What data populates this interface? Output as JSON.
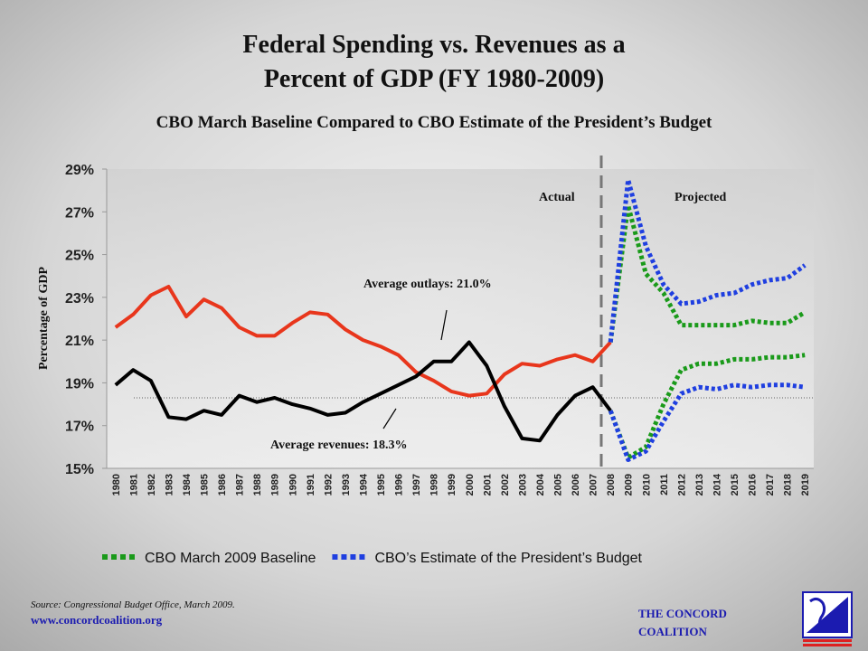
{
  "chart_data": {
    "type": "line",
    "title": [
      "Federal Spending vs. Revenues as a",
      "Percent of GDP (FY 1980-2009)"
    ],
    "subtitle": "CBO March Baseline Compared to CBO Estimate of the President’s Budget",
    "y_label": "Percentage of GDP",
    "categories": [
      "1980",
      "1981",
      "1982",
      "1983",
      "1984",
      "1985",
      "1986",
      "1987",
      "1988",
      "1989",
      "1990",
      "1991",
      "1992",
      "1993",
      "1994",
      "1995",
      "1996",
      "1997",
      "1998",
      "1999",
      "2000",
      "2001",
      "2002",
      "2003",
      "2004",
      "2005",
      "2006",
      "2007",
      "2008",
      "2009",
      "2010",
      "2011",
      "2012",
      "2013",
      "2014",
      "2015",
      "2016",
      "2017",
      "2018",
      "2019"
    ],
    "ylim": [
      15,
      29
    ],
    "yticks": [
      {
        "value": 15,
        "label": "15%"
      },
      {
        "value": 17,
        "label": "17%"
      },
      {
        "value": 19,
        "label": "19%"
      },
      {
        "value": 21,
        "label": "21%"
      },
      {
        "value": 23,
        "label": "23%"
      },
      {
        "value": 25,
        "label": "25%"
      },
      {
        "value": 27,
        "label": "27%"
      },
      {
        "value": 29,
        "label": "29%"
      }
    ],
    "series": [
      {
        "color": "#e8361c",
        "dotted": false,
        "values": [
          21.6,
          22.2,
          23.1,
          23.5,
          22.1,
          22.9,
          22.5,
          21.6,
          21.2,
          21.2,
          21.8,
          22.3,
          22.2,
          21.5,
          21.0,
          20.7,
          20.3,
          19.5,
          19.1,
          18.6,
          18.4,
          18.5,
          19.4,
          19.9,
          19.8,
          20.1,
          20.3,
          20.0,
          20.9,
          null,
          null,
          null,
          null,
          null,
          null,
          null,
          null,
          null,
          null,
          null
        ]
      },
      {
        "color": "#000000",
        "dotted": false,
        "values": [
          18.9,
          19.6,
          19.1,
          17.4,
          17.3,
          17.7,
          17.5,
          18.4,
          18.1,
          18.3,
          18.0,
          17.8,
          17.5,
          17.6,
          18.1,
          18.5,
          18.9,
          19.3,
          20.0,
          20.0,
          20.9,
          19.8,
          17.9,
          16.4,
          16.3,
          17.5,
          18.4,
          18.8,
          17.7,
          null,
          null,
          null,
          null,
          null,
          null,
          null,
          null,
          null,
          null,
          null
        ]
      },
      {
        "name": "CBO March 2009 Baseline",
        "color": "#1a9a1a",
        "dotted": true,
        "values": [
          null,
          null,
          null,
          null,
          null,
          null,
          null,
          null,
          null,
          null,
          null,
          null,
          null,
          null,
          null,
          null,
          null,
          null,
          null,
          null,
          null,
          null,
          null,
          null,
          null,
          null,
          null,
          null,
          20.9,
          27.3,
          24.1,
          23.2,
          21.7,
          21.7,
          21.7,
          21.7,
          21.9,
          21.8,
          21.8,
          22.3
        ]
      },
      {
        "color": "#1a9a1a",
        "dotted": true,
        "values": [
          null,
          null,
          null,
          null,
          null,
          null,
          null,
          null,
          null,
          null,
          null,
          null,
          null,
          null,
          null,
          null,
          null,
          null,
          null,
          null,
          null,
          null,
          null,
          null,
          null,
          null,
          null,
          null,
          17.7,
          15.5,
          16.0,
          18.0,
          19.6,
          19.9,
          19.9,
          20.1,
          20.1,
          20.2,
          20.2,
          20.3
        ]
      },
      {
        "name": "CBO’s Estimate of the President’s Budget",
        "color": "#1f3fe0",
        "dotted": true,
        "values": [
          null,
          null,
          null,
          null,
          null,
          null,
          null,
          null,
          null,
          null,
          null,
          null,
          null,
          null,
          null,
          null,
          null,
          null,
          null,
          null,
          null,
          null,
          null,
          null,
          null,
          null,
          null,
          null,
          20.9,
          28.5,
          25.4,
          23.6,
          22.7,
          22.8,
          23.1,
          23.2,
          23.6,
          23.8,
          23.9,
          24.5
        ]
      },
      {
        "color": "#1f3fe0",
        "dotted": true,
        "values": [
          null,
          null,
          null,
          null,
          null,
          null,
          null,
          null,
          null,
          null,
          null,
          null,
          null,
          null,
          null,
          null,
          null,
          null,
          null,
          null,
          null,
          null,
          null,
          null,
          null,
          null,
          null,
          null,
          17.7,
          15.4,
          15.8,
          17.2,
          18.5,
          18.8,
          18.7,
          18.9,
          18.8,
          18.9,
          18.9,
          18.8
        ]
      }
    ],
    "reference_line": 18.3,
    "annotations": [
      "Average outlays: 21.0%",
      "Average revenues: 18.3%",
      "Actual",
      "Projected"
    ],
    "source": "Source: Congressional Budget Office, March 2009.",
    "url": "www.concordcoalition.org",
    "organization": [
      "THE CONCORD",
      "COALITION"
    ]
  }
}
